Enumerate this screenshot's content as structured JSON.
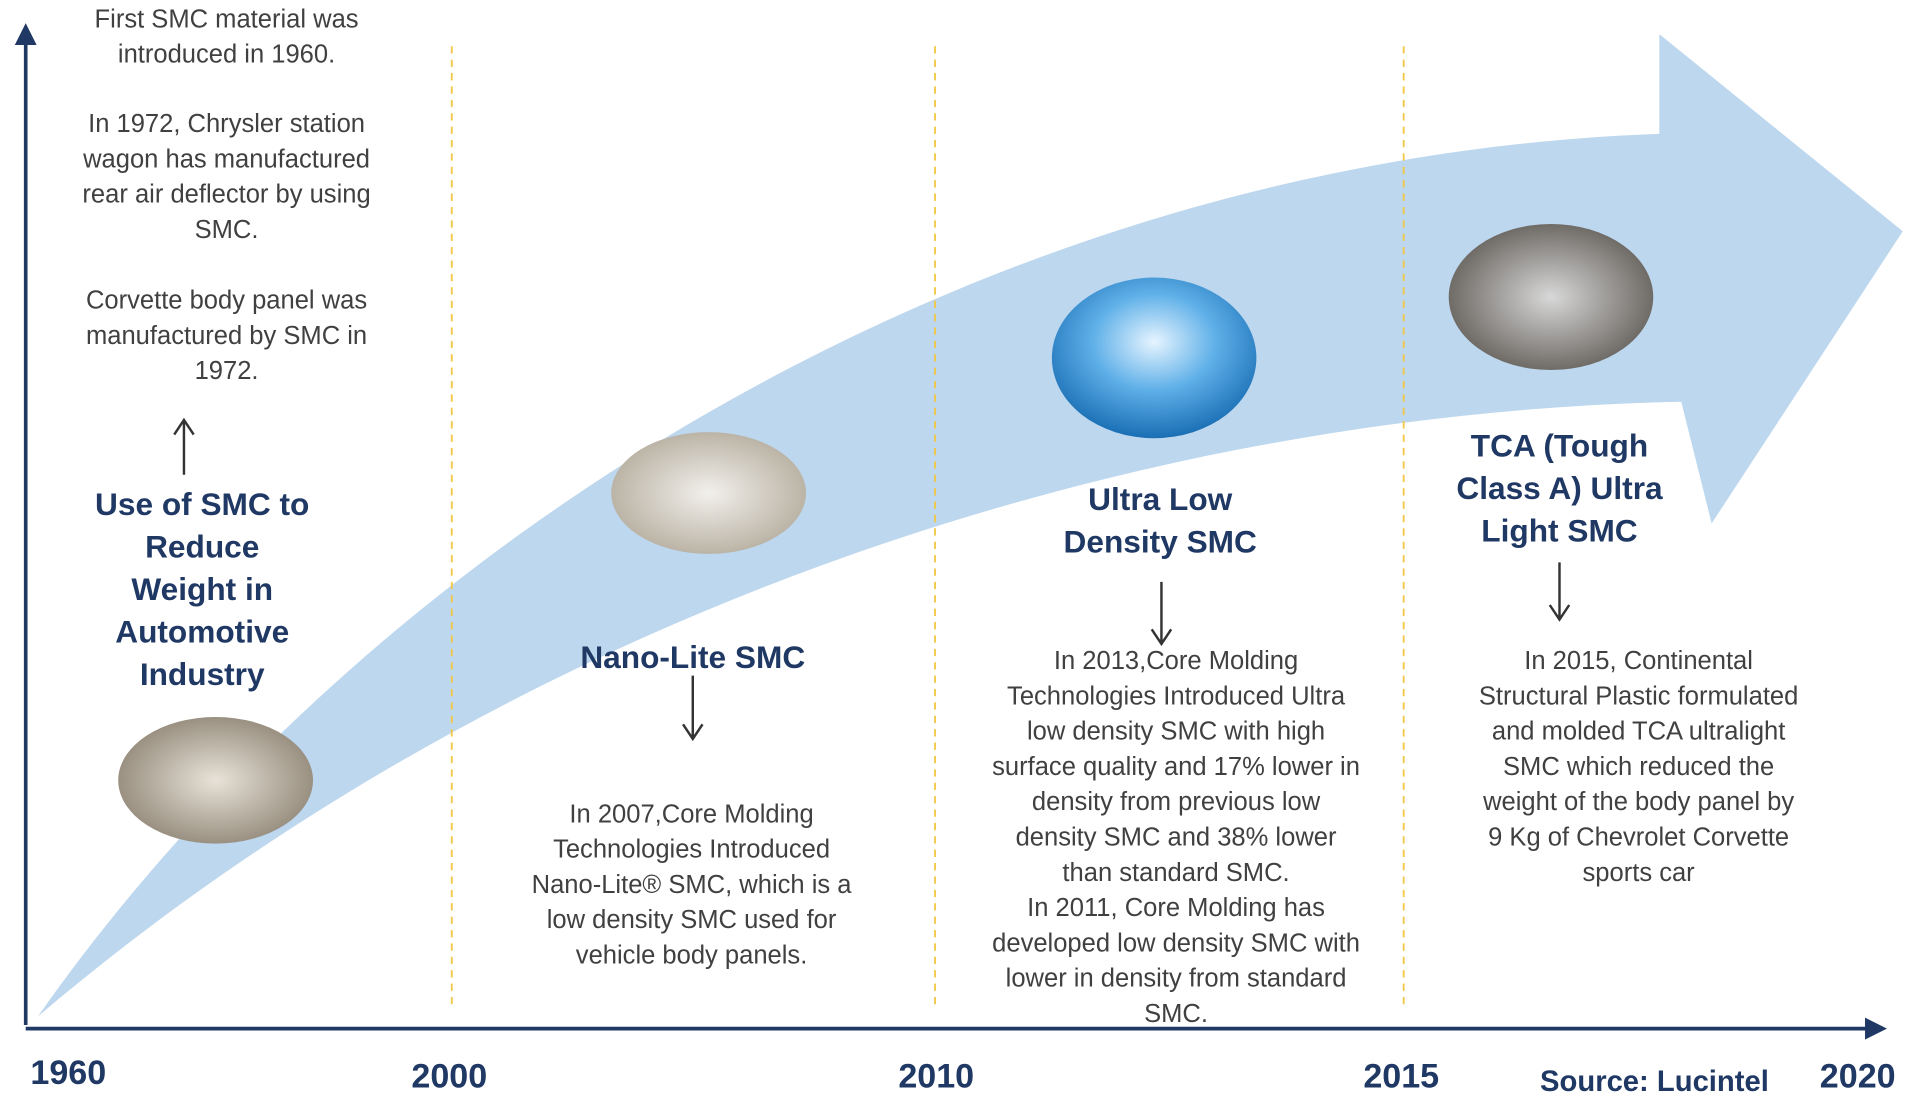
{
  "years": [
    "1960",
    "2000",
    "2010",
    "2015",
    "2020"
  ],
  "source": "Source: Lucintel",
  "intro": {
    "notes": [
      "First SMC material was",
      "introduced in 1960.",
      "In 1972, Chrysler station",
      "wagon has manufactured",
      "rear air deflector by using",
      "SMC.",
      "Corvette body panel  was",
      "manufactured by SMC in",
      "1972."
    ],
    "title": [
      "Use of SMC to",
      "Reduce",
      "Weight in",
      "Automotive",
      "Industry"
    ]
  },
  "milestones": [
    {
      "title": [
        "Nano-Lite SMC"
      ],
      "description": [
        "In 2007,Core Molding",
        "Technologies  Introduced",
        "Nano-Lite® SMC, which is a",
        "low density SMC used for",
        "vehicle body panels."
      ]
    },
    {
      "title": [
        "Ultra Low",
        "Density  SMC"
      ],
      "description": [
        "In 2013,Core Molding",
        "Technologies  Introduced  Ultra",
        "low  density  SMC  with high",
        "surface quality and 17% lower  in",
        "density  from previous low",
        "density SMC  and  38% lower",
        "than standard SMC.",
        "In 2011, Core Molding has",
        "developed  low  density SMC with",
        "lower in density  from  standard",
        "SMC."
      ]
    },
    {
      "title": [
        "TCA (Tough",
        "Class A) Ultra",
        "Light SMC"
      ],
      "description": [
        "In 2015, Continental",
        "Structural Plastic formulated",
        "and molded  TCA  ultralight",
        "SMC  which reduced the",
        "weight of  the body panel by",
        "9 Kg of  Chevrolet Corvette",
        "sports car"
      ]
    }
  ]
}
